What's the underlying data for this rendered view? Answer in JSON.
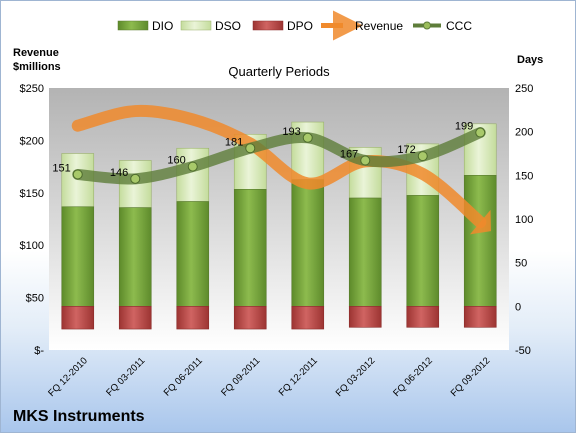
{
  "company": "MKS Instruments",
  "chart_data": {
    "type": "bar",
    "title": "Quarterly Periods",
    "left_axis_title": "Revenue $millions",
    "right_axis_title": "Days",
    "categories": [
      "FQ 12-2010",
      "FQ 03-2011",
      "FQ 06-2011",
      "FQ 09-2011",
      "FQ 12-2011",
      "FQ 03-2012",
      "FQ 06-2012",
      "FQ 09-2012"
    ],
    "left_axis": {
      "ticks": [
        "$-",
        "$50",
        "$100",
        "$150",
        "$200",
        "$250"
      ],
      "ylim": [
        0,
        250
      ]
    },
    "right_axis": {
      "ticks": [
        "-50",
        "0",
        "50",
        "100",
        "150",
        "200",
        "250"
      ],
      "ylim": [
        -50,
        250
      ]
    },
    "legend_position": "top",
    "legend": [
      {
        "name": "DIO",
        "color": "#77a33a"
      },
      {
        "name": "DSO",
        "color": "#d7e9b6"
      },
      {
        "name": "DPO",
        "color": "#c0504d"
      },
      {
        "name": "Revenue",
        "color": "#f08a2c"
      },
      {
        "name": "CCC",
        "color": "#5e7d3a"
      }
    ],
    "series": [
      {
        "name": "DIO",
        "axis": "days",
        "values": [
          114,
          113,
          120,
          134,
          145,
          124,
          127,
          150
        ]
      },
      {
        "name": "DSO",
        "axis": "days",
        "values": [
          61,
          54,
          61,
          63,
          66,
          58,
          59,
          59
        ]
      },
      {
        "name": "DPO",
        "axis": "days",
        "values": [
          -26,
          -26,
          -26,
          -26,
          -26,
          -24,
          -24,
          -24
        ]
      },
      {
        "name": "CCC",
        "axis": "days",
        "values": [
          151,
          146,
          160,
          181,
          193,
          167,
          172,
          199
        ]
      },
      {
        "name": "Revenue",
        "axis": "money",
        "values": [
          214,
          228,
          220,
          197,
          159,
          180,
          168,
          122
        ]
      }
    ],
    "ccc_labels": [
      "151",
      "146",
      "160",
      "181",
      "193",
      "167",
      "172",
      "199"
    ],
    "grid": false
  }
}
